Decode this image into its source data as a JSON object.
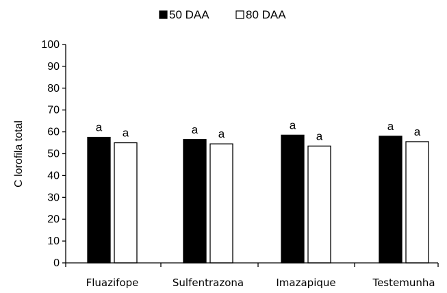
{
  "chart_data": {
    "type": "bar",
    "title": "",
    "xlabel": "",
    "ylabel": "C lorofila total",
    "ylim": [
      0,
      100
    ],
    "yticks": [
      0,
      10,
      20,
      30,
      40,
      50,
      60,
      70,
      80,
      90,
      100
    ],
    "categories": [
      "Fluazifope",
      "Sulfentrazona",
      "Imazapique",
      "Testemunha"
    ],
    "series": [
      {
        "name": "50 DAA",
        "color": "#000000",
        "values": [
          57.5,
          56.5,
          58.5,
          58
        ],
        "labels": [
          "a",
          "a",
          "a",
          "a"
        ]
      },
      {
        "name": "80 DAA",
        "color": "#ffffff",
        "values": [
          55,
          54.5,
          53.5,
          55.5
        ],
        "labels": [
          "a",
          "a",
          "a",
          "a"
        ]
      }
    ],
    "legend": "top-center",
    "grid": false
  }
}
